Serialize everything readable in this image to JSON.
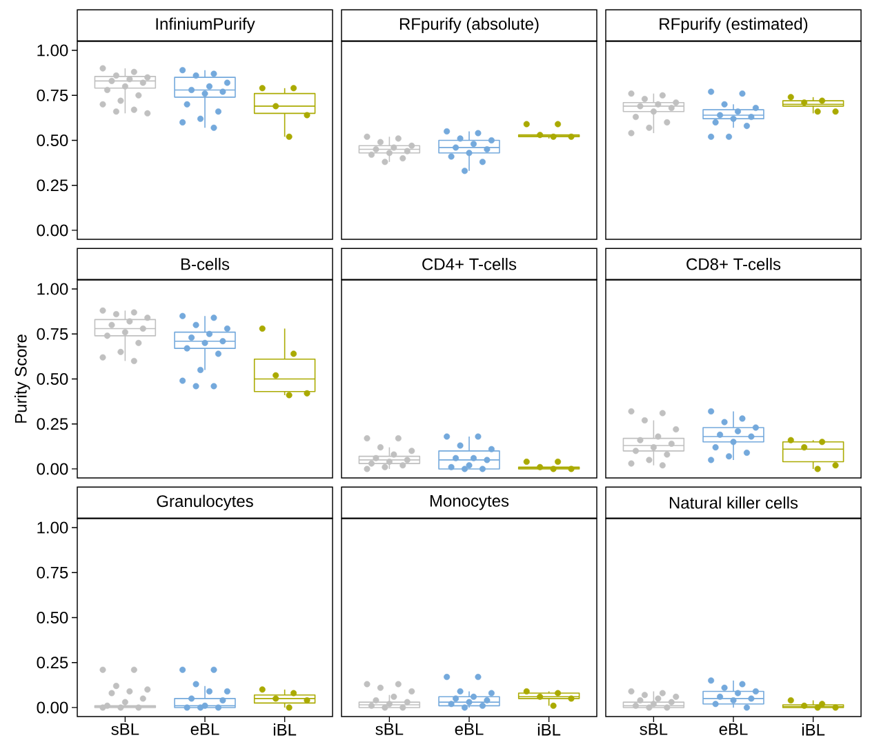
{
  "chart_data": [
    {
      "type": "box",
      "title": "InfiniumPurify",
      "categories": [
        "sBL",
        "eBL",
        "iBL"
      ],
      "colors": [
        "#c0c0c0",
        "#74a9dc",
        "#aaaa00"
      ],
      "ylim": [
        -0.05,
        1.05
      ],
      "yticks": [
        {
          "value": 0,
          "label": "0.00"
        },
        {
          "value": 0.25,
          "label": "0.25"
        },
        {
          "value": 0.5,
          "label": "0.50"
        },
        {
          "value": 0.75,
          "label": "0.75"
        },
        {
          "value": 1,
          "label": "1.00"
        }
      ],
      "tick_labels": "y",
      "boxes": [
        {
          "low": 0.65,
          "q1": 0.79,
          "median": 0.83,
          "q3": 0.855,
          "high": 0.9
        },
        {
          "low": 0.57,
          "q1": 0.74,
          "median": 0.78,
          "q3": 0.85,
          "high": 0.89
        },
        {
          "low": 0.52,
          "q1": 0.65,
          "median": 0.69,
          "q3": 0.76,
          "high": 0.79
        }
      ],
      "series": [
        {
          "type": "scatter",
          "color": "#c0c0c0",
          "x": [
            "sBL",
            "sBL",
            "sBL",
            "sBL",
            "sBL",
            "sBL",
            "sBL",
            "sBL",
            "sBL",
            "sBL",
            "sBL",
            "sBL",
            "sBL",
            "sBL",
            "sBL"
          ],
          "values": [
            0.9,
            0.88,
            0.86,
            0.85,
            0.84,
            0.83,
            0.82,
            0.8,
            0.78,
            0.75,
            0.72,
            0.7,
            0.67,
            0.66,
            0.65
          ]
        },
        {
          "type": "scatter",
          "color": "#74a9dc",
          "x": [
            "eBL",
            "eBL",
            "eBL",
            "eBL",
            "eBL",
            "eBL",
            "eBL",
            "eBL",
            "eBL",
            "eBL",
            "eBL",
            "eBL",
            "eBL"
          ],
          "values": [
            0.89,
            0.87,
            0.86,
            0.82,
            0.8,
            0.78,
            0.77,
            0.76,
            0.7,
            0.66,
            0.62,
            0.6,
            0.57
          ]
        },
        {
          "type": "scatter",
          "color": "#aaaa00",
          "x": [
            "iBL",
            "iBL",
            "iBL",
            "iBL",
            "iBL"
          ],
          "values": [
            0.79,
            0.79,
            0.69,
            0.64,
            0.52
          ]
        }
      ]
    },
    {
      "type": "box",
      "title": "RFpurify (absolute)",
      "categories": [
        "sBL",
        "eBL",
        "iBL"
      ],
      "colors": [
        "#c0c0c0",
        "#74a9dc",
        "#aaaa00"
      ],
      "ylim": [
        -0.05,
        1.05
      ],
      "tick_labels": false,
      "boxes": [
        {
          "low": 0.38,
          "q1": 0.43,
          "median": 0.45,
          "q3": 0.47,
          "high": 0.52
        },
        {
          "low": 0.33,
          "q1": 0.43,
          "median": 0.46,
          "q3": 0.5,
          "high": 0.55
        },
        {
          "low": 0.51,
          "q1": 0.52,
          "median": 0.525,
          "q3": 0.53,
          "high": 0.53
        }
      ],
      "series": [
        {
          "type": "scatter",
          "color": "#c0c0c0",
          "x": [
            "sBL",
            "sBL",
            "sBL",
            "sBL",
            "sBL",
            "sBL",
            "sBL",
            "sBL",
            "sBL",
            "sBL",
            "sBL"
          ],
          "values": [
            0.52,
            0.51,
            0.49,
            0.47,
            0.46,
            0.45,
            0.44,
            0.43,
            0.42,
            0.4,
            0.38
          ]
        },
        {
          "type": "scatter",
          "color": "#74a9dc",
          "x": [
            "eBL",
            "eBL",
            "eBL",
            "eBL",
            "eBL",
            "eBL",
            "eBL",
            "eBL",
            "eBL",
            "eBL",
            "eBL"
          ],
          "values": [
            0.55,
            0.54,
            0.51,
            0.5,
            0.48,
            0.46,
            0.45,
            0.43,
            0.41,
            0.38,
            0.33
          ]
        },
        {
          "type": "scatter",
          "color": "#aaaa00",
          "x": [
            "iBL",
            "iBL",
            "iBL",
            "iBL",
            "iBL"
          ],
          "values": [
            0.59,
            0.59,
            0.53,
            0.52,
            0.52
          ]
        }
      ]
    },
    {
      "type": "box",
      "title": "RFpurify (estimated)",
      "categories": [
        "sBL",
        "eBL",
        "iBL"
      ],
      "colors": [
        "#c0c0c0",
        "#74a9dc",
        "#aaaa00"
      ],
      "ylim": [
        -0.05,
        1.05
      ],
      "tick_labels": false,
      "boxes": [
        {
          "low": 0.54,
          "q1": 0.66,
          "median": 0.69,
          "q3": 0.71,
          "high": 0.76
        },
        {
          "low": 0.57,
          "q1": 0.62,
          "median": 0.64,
          "q3": 0.67,
          "high": 0.7
        },
        {
          "low": 0.65,
          "q1": 0.69,
          "median": 0.7,
          "q3": 0.72,
          "high": 0.74
        }
      ],
      "series": [
        {
          "type": "scatter",
          "color": "#c0c0c0",
          "x": [
            "sBL",
            "sBL",
            "sBL",
            "sBL",
            "sBL",
            "sBL",
            "sBL",
            "sBL",
            "sBL",
            "sBL",
            "sBL",
            "sBL"
          ],
          "values": [
            0.76,
            0.75,
            0.73,
            0.71,
            0.7,
            0.69,
            0.68,
            0.66,
            0.63,
            0.6,
            0.57,
            0.54
          ]
        },
        {
          "type": "scatter",
          "color": "#74a9dc",
          "x": [
            "eBL",
            "eBL",
            "eBL",
            "eBL",
            "eBL",
            "eBL",
            "eBL",
            "eBL",
            "eBL",
            "eBL",
            "eBL",
            "eBL"
          ],
          "values": [
            0.77,
            0.76,
            0.7,
            0.68,
            0.66,
            0.64,
            0.63,
            0.62,
            0.6,
            0.58,
            0.52,
            0.52
          ]
        },
        {
          "type": "scatter",
          "color": "#aaaa00",
          "x": [
            "iBL",
            "iBL",
            "iBL",
            "iBL",
            "iBL"
          ],
          "values": [
            0.74,
            0.72,
            0.71,
            0.66,
            0.66
          ]
        }
      ]
    },
    {
      "type": "box",
      "title": "B-cells",
      "ylabel": "Purity Score",
      "categories": [
        "sBL",
        "eBL",
        "iBL"
      ],
      "colors": [
        "#c0c0c0",
        "#74a9dc",
        "#aaaa00"
      ],
      "ylim": [
        -0.05,
        1.05
      ],
      "yticks": [
        {
          "value": 0,
          "label": "0.00"
        },
        {
          "value": 0.25,
          "label": "0.25"
        },
        {
          "value": 0.5,
          "label": "0.50"
        },
        {
          "value": 0.75,
          "label": "0.75"
        },
        {
          "value": 1,
          "label": "1.00"
        }
      ],
      "tick_labels": "y",
      "boxes": [
        {
          "low": 0.6,
          "q1": 0.74,
          "median": 0.78,
          "q3": 0.83,
          "high": 0.88
        },
        {
          "low": 0.55,
          "q1": 0.67,
          "median": 0.71,
          "q3": 0.76,
          "high": 0.85
        },
        {
          "low": 0.41,
          "q1": 0.43,
          "median": 0.5,
          "q3": 0.61,
          "high": 0.78
        }
      ],
      "series": [
        {
          "type": "scatter",
          "color": "#c0c0c0",
          "x": [
            "sBL",
            "sBL",
            "sBL",
            "sBL",
            "sBL",
            "sBL",
            "sBL",
            "sBL",
            "sBL",
            "sBL",
            "sBL",
            "sBL",
            "sBL"
          ],
          "values": [
            0.88,
            0.87,
            0.86,
            0.84,
            0.82,
            0.8,
            0.78,
            0.76,
            0.74,
            0.7,
            0.65,
            0.62,
            0.6
          ]
        },
        {
          "type": "scatter",
          "color": "#74a9dc",
          "x": [
            "eBL",
            "eBL",
            "eBL",
            "eBL",
            "eBL",
            "eBL",
            "eBL",
            "eBL",
            "eBL",
            "eBL",
            "eBL",
            "eBL",
            "eBL",
            "eBL"
          ],
          "values": [
            0.85,
            0.84,
            0.8,
            0.78,
            0.75,
            0.73,
            0.71,
            0.7,
            0.67,
            0.64,
            0.55,
            0.49,
            0.46,
            0.46
          ]
        },
        {
          "type": "scatter",
          "color": "#aaaa00",
          "x": [
            "iBL",
            "iBL",
            "iBL",
            "iBL",
            "iBL"
          ],
          "values": [
            0.78,
            0.64,
            0.52,
            0.42,
            0.41
          ]
        }
      ]
    },
    {
      "type": "box",
      "title": "CD4+ T-cells",
      "categories": [
        "sBL",
        "eBL",
        "iBL"
      ],
      "colors": [
        "#c0c0c0",
        "#74a9dc",
        "#aaaa00"
      ],
      "ylim": [
        -0.05,
        1.05
      ],
      "tick_labels": false,
      "boxes": [
        {
          "low": 0,
          "q1": 0.03,
          "median": 0.05,
          "q3": 0.07,
          "high": 0.12
        },
        {
          "low": 0,
          "q1": 0,
          "median": 0.05,
          "q3": 0.1,
          "high": 0.18
        },
        {
          "low": 0,
          "q1": 0,
          "median": 0.005,
          "q3": 0.01,
          "high": 0.01
        }
      ],
      "series": [
        {
          "type": "scatter",
          "color": "#c0c0c0",
          "x": [
            "sBL",
            "sBL",
            "sBL",
            "sBL",
            "sBL",
            "sBL",
            "sBL",
            "sBL",
            "sBL",
            "sBL",
            "sBL",
            "sBL"
          ],
          "values": [
            0.17,
            0.17,
            0.12,
            0.1,
            0.08,
            0.06,
            0.05,
            0.04,
            0.03,
            0.02,
            0.01,
            0
          ]
        },
        {
          "type": "scatter",
          "color": "#74a9dc",
          "x": [
            "eBL",
            "eBL",
            "eBL",
            "eBL",
            "eBL",
            "eBL",
            "eBL",
            "eBL",
            "eBL",
            "eBL",
            "eBL"
          ],
          "values": [
            0.18,
            0.18,
            0.13,
            0.11,
            0.06,
            0.06,
            0.05,
            0.02,
            0.01,
            0,
            0
          ]
        },
        {
          "type": "scatter",
          "color": "#aaaa00",
          "x": [
            "iBL",
            "iBL",
            "iBL",
            "iBL",
            "iBL"
          ],
          "values": [
            0.04,
            0.04,
            0.01,
            0,
            0
          ]
        }
      ]
    },
    {
      "type": "box",
      "title": "CD8+ T-cells",
      "categories": [
        "sBL",
        "eBL",
        "iBL"
      ],
      "colors": [
        "#c0c0c0",
        "#74a9dc",
        "#aaaa00"
      ],
      "ylim": [
        -0.05,
        1.05
      ],
      "tick_labels": false,
      "boxes": [
        {
          "low": 0.02,
          "q1": 0.1,
          "median": 0.13,
          "q3": 0.17,
          "high": 0.27
        },
        {
          "low": 0.05,
          "q1": 0.15,
          "median": 0.18,
          "q3": 0.23,
          "high": 0.32
        },
        {
          "low": 0,
          "q1": 0.04,
          "median": 0.11,
          "q3": 0.15,
          "high": 0.16
        }
      ],
      "series": [
        {
          "type": "scatter",
          "color": "#c0c0c0",
          "x": [
            "sBL",
            "sBL",
            "sBL",
            "sBL",
            "sBL",
            "sBL",
            "sBL",
            "sBL",
            "sBL",
            "sBL",
            "sBL",
            "sBL",
            "sBL"
          ],
          "values": [
            0.32,
            0.31,
            0.27,
            0.22,
            0.18,
            0.16,
            0.14,
            0.12,
            0.1,
            0.08,
            0.05,
            0.03,
            0.02
          ]
        },
        {
          "type": "scatter",
          "color": "#74a9dc",
          "x": [
            "eBL",
            "eBL",
            "eBL",
            "eBL",
            "eBL",
            "eBL",
            "eBL",
            "eBL",
            "eBL",
            "eBL",
            "eBL",
            "eBL"
          ],
          "values": [
            0.32,
            0.28,
            0.26,
            0.23,
            0.21,
            0.19,
            0.18,
            0.15,
            0.12,
            0.09,
            0.07,
            0.05
          ]
        },
        {
          "type": "scatter",
          "color": "#aaaa00",
          "x": [
            "iBL",
            "iBL",
            "iBL",
            "iBL",
            "iBL"
          ],
          "values": [
            0.16,
            0.15,
            0.12,
            0.02,
            0
          ]
        }
      ]
    },
    {
      "type": "box",
      "title": "Granulocytes",
      "categories": [
        "sBL",
        "eBL",
        "iBL"
      ],
      "colors": [
        "#c0c0c0",
        "#74a9dc",
        "#aaaa00"
      ],
      "ylim": [
        -0.05,
        1.05
      ],
      "yticks": [
        {
          "value": 0,
          "label": "0.00"
        },
        {
          "value": 0.25,
          "label": "0.25"
        },
        {
          "value": 0.5,
          "label": "0.50"
        },
        {
          "value": 0.75,
          "label": "0.75"
        },
        {
          "value": 1,
          "label": "1.00"
        }
      ],
      "boxes": [
        {
          "low": 0,
          "q1": 0,
          "median": 0.005,
          "q3": 0.01,
          "high": 0.02
        },
        {
          "low": 0,
          "q1": 0,
          "median": 0.01,
          "q3": 0.05,
          "high": 0.12
        },
        {
          "low": 0,
          "q1": 0.025,
          "median": 0.05,
          "q3": 0.07,
          "high": 0.1
        }
      ],
      "series": [
        {
          "type": "scatter",
          "color": "#c0c0c0",
          "x": [
            "sBL",
            "sBL",
            "sBL",
            "sBL",
            "sBL",
            "sBL",
            "sBL",
            "sBL",
            "sBL",
            "sBL",
            "sBL",
            "sBL"
          ],
          "values": [
            0.21,
            0.21,
            0.12,
            0.1,
            0.09,
            0.08,
            0.05,
            0.03,
            0.01,
            0,
            0,
            0
          ]
        },
        {
          "type": "scatter",
          "color": "#74a9dc",
          "x": [
            "eBL",
            "eBL",
            "eBL",
            "eBL",
            "eBL",
            "eBL",
            "eBL",
            "eBL",
            "eBL",
            "eBL",
            "eBL"
          ],
          "values": [
            0.21,
            0.21,
            0.13,
            0.09,
            0.09,
            0.05,
            0.04,
            0.01,
            0,
            0,
            0
          ]
        },
        {
          "type": "scatter",
          "color": "#aaaa00",
          "x": [
            "iBL",
            "iBL",
            "iBL",
            "iBL",
            "iBL"
          ],
          "values": [
            0.1,
            0.08,
            0.05,
            0.04,
            0
          ]
        }
      ]
    },
    {
      "type": "box",
      "title": "Monocytes",
      "categories": [
        "sBL",
        "eBL",
        "iBL"
      ],
      "colors": [
        "#c0c0c0",
        "#74a9dc",
        "#aaaa00"
      ],
      "ylim": [
        -0.05,
        1.05
      ],
      "tick_labels": "x",
      "boxes": [
        {
          "low": 0,
          "q1": 0,
          "median": 0.015,
          "q3": 0.03,
          "high": 0.07
        },
        {
          "low": 0,
          "q1": 0.01,
          "median": 0.03,
          "q3": 0.06,
          "high": 0.09
        },
        {
          "low": 0.01,
          "q1": 0.05,
          "median": 0.06,
          "q3": 0.08,
          "high": 0.09
        }
      ],
      "series": [
        {
          "type": "scatter",
          "color": "#c0c0c0",
          "x": [
            "sBL",
            "sBL",
            "sBL",
            "sBL",
            "sBL",
            "sBL",
            "sBL",
            "sBL",
            "sBL",
            "sBL",
            "sBL"
          ],
          "values": [
            0.13,
            0.13,
            0.11,
            0.09,
            0.06,
            0.04,
            0.03,
            0.02,
            0.01,
            0,
            0
          ]
        },
        {
          "type": "scatter",
          "color": "#74a9dc",
          "x": [
            "eBL",
            "eBL",
            "eBL",
            "eBL",
            "eBL",
            "eBL",
            "eBL",
            "eBL",
            "eBL",
            "eBL",
            "eBL"
          ],
          "values": [
            0.17,
            0.17,
            0.09,
            0.08,
            0.06,
            0.05,
            0.04,
            0.03,
            0.02,
            0.01,
            0
          ]
        },
        {
          "type": "scatter",
          "color": "#aaaa00",
          "x": [
            "iBL",
            "iBL",
            "iBL",
            "iBL",
            "iBL"
          ],
          "values": [
            0.09,
            0.08,
            0.06,
            0.05,
            0.01
          ]
        }
      ]
    },
    {
      "type": "box",
      "title": "Natural killer cells",
      "categories": [
        "sBL",
        "eBL",
        "iBL"
      ],
      "colors": [
        "#c0c0c0",
        "#74a9dc",
        "#aaaa00"
      ],
      "ylim": [
        -0.05,
        1.05
      ],
      "tick_labels": "x",
      "boxes": [
        {
          "low": 0,
          "q1": 0,
          "median": 0.01,
          "q3": 0.03,
          "high": 0.09
        },
        {
          "low": 0,
          "q1": 0.02,
          "median": 0.05,
          "q3": 0.09,
          "high": 0.15
        },
        {
          "low": 0,
          "q1": 0,
          "median": 0.005,
          "q3": 0.015,
          "high": 0.04
        }
      ],
      "series": [
        {
          "type": "scatter",
          "color": "#c0c0c0",
          "x": [
            "sBL",
            "sBL",
            "sBL",
            "sBL",
            "sBL",
            "sBL",
            "sBL",
            "sBL",
            "sBL",
            "sBL",
            "sBL"
          ],
          "values": [
            0.09,
            0.08,
            0.07,
            0.06,
            0.05,
            0.04,
            0.03,
            0.02,
            0.01,
            0,
            0
          ]
        },
        {
          "type": "scatter",
          "color": "#74a9dc",
          "x": [
            "eBL",
            "eBL",
            "eBL",
            "eBL",
            "eBL",
            "eBL",
            "eBL",
            "eBL",
            "eBL",
            "eBL"
          ],
          "values": [
            0.15,
            0.13,
            0.11,
            0.09,
            0.08,
            0.06,
            0.05,
            0.04,
            0.02,
            0
          ]
        },
        {
          "type": "scatter",
          "color": "#aaaa00",
          "x": [
            "iBL",
            "iBL",
            "iBL",
            "iBL",
            "iBL"
          ],
          "values": [
            0.04,
            0.02,
            0.01,
            0,
            0
          ]
        }
      ]
    }
  ]
}
